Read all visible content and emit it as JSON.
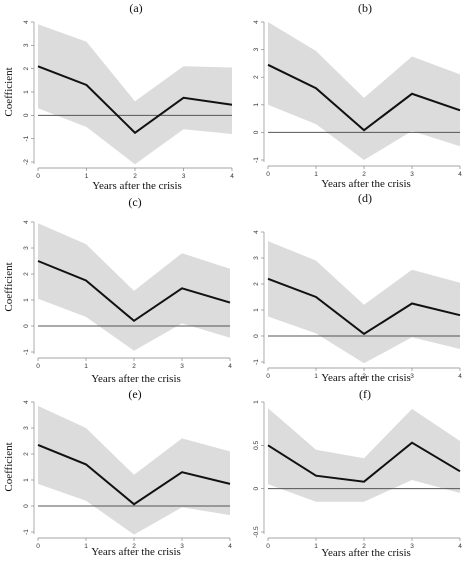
{
  "chart_data": [
    {
      "type": "line",
      "title": "(a)",
      "xlabel": "Years after the crisis",
      "ylabel": "Coefficient",
      "x": [
        0,
        1,
        2,
        3,
        4
      ],
      "xlim": [
        0,
        4
      ],
      "ylim": [
        -2,
        4
      ],
      "yticks": [
        -2,
        -1,
        0,
        1,
        2,
        3,
        4
      ],
      "xticks": [
        0,
        1,
        2,
        3,
        4
      ],
      "series": [
        {
          "values": [
            2.1,
            1.3,
            -0.75,
            0.75,
            0.45
          ]
        }
      ],
      "ci_lower": [
        0.3,
        -0.5,
        -2.1,
        -0.6,
        -0.8
      ],
      "ci_upper": [
        3.9,
        3.15,
        0.6,
        2.1,
        2.05
      ],
      "reference_line": 0,
      "colors": {
        "line": "#111111",
        "band": "#dcdcdc",
        "reference": "#555555"
      }
    },
    {
      "type": "line",
      "title": "(b)",
      "xlabel": "Years after the crisis",
      "ylabel": "",
      "x": [
        0,
        1,
        2,
        3,
        4
      ],
      "xlim": [
        0,
        4
      ],
      "ylim": [
        -1,
        4
      ],
      "yticks": [
        -1,
        0,
        1,
        2,
        3,
        4
      ],
      "xticks": [
        0,
        1,
        2,
        3,
        4
      ],
      "series": [
        {
          "values": [
            2.45,
            1.6,
            0.08,
            1.4,
            0.8
          ]
        }
      ],
      "ci_lower": [
        1.0,
        0.3,
        -1.0,
        0.05,
        -0.5
      ],
      "ci_upper": [
        4.0,
        2.95,
        1.25,
        2.75,
        2.1
      ],
      "reference_line": 0,
      "colors": {
        "line": "#111111",
        "band": "#dcdcdc",
        "reference": "#555555"
      }
    },
    {
      "type": "line",
      "title": "(c)",
      "xlabel": "Years after the crisis",
      "ylabel": "Coefficient",
      "x": [
        0,
        1,
        2,
        3,
        4
      ],
      "xlim": [
        0,
        4
      ],
      "ylim": [
        -1,
        4
      ],
      "yticks": [
        -1,
        0,
        1,
        2,
        3,
        4
      ],
      "xticks": [
        0,
        1,
        2,
        3,
        4
      ],
      "series": [
        {
          "values": [
            2.5,
            1.75,
            0.2,
            1.45,
            0.9
          ]
        }
      ],
      "ci_lower": [
        1.05,
        0.35,
        -0.95,
        0.1,
        -0.45
      ],
      "ci_upper": [
        3.95,
        3.15,
        1.35,
        2.8,
        2.2
      ],
      "reference_line": 0,
      "colors": {
        "line": "#111111",
        "band": "#dcdcdc",
        "reference": "#555555"
      }
    },
    {
      "type": "line",
      "title": "(d)",
      "xlabel": "Years after the crisis",
      "ylabel": "",
      "x": [
        0,
        1,
        2,
        3,
        4
      ],
      "xlim": [
        0,
        4
      ],
      "ylim": [
        -1,
        4
      ],
      "yticks": [
        -1,
        0,
        1,
        2,
        3,
        4
      ],
      "xticks": [
        0,
        1,
        2,
        3,
        4
      ],
      "series": [
        {
          "values": [
            2.2,
            1.5,
            0.08,
            1.25,
            0.8
          ]
        }
      ],
      "ci_lower": [
        0.75,
        0.1,
        -1.05,
        -0.05,
        -0.5
      ],
      "ci_upper": [
        3.65,
        2.9,
        1.2,
        2.55,
        2.05
      ],
      "reference_line": 0,
      "colors": {
        "line": "#111111",
        "band": "#dcdcdc",
        "reference": "#555555"
      }
    },
    {
      "type": "line",
      "title": "(e)",
      "xlabel": "Years after the crisis",
      "ylabel": "Coefficient",
      "x": [
        0,
        1,
        2,
        3,
        4
      ],
      "xlim": [
        0,
        4
      ],
      "ylim": [
        -1,
        4
      ],
      "yticks": [
        -1,
        0,
        1,
        2,
        3,
        4
      ],
      "xticks": [
        0,
        1,
        2,
        3,
        4
      ],
      "series": [
        {
          "values": [
            2.35,
            1.6,
            0.07,
            1.3,
            0.85
          ]
        }
      ],
      "ci_lower": [
        0.85,
        0.2,
        -1.1,
        -0.05,
        -0.35
      ],
      "ci_upper": [
        3.85,
        3.0,
        1.2,
        2.6,
        2.1
      ],
      "reference_line": 0,
      "colors": {
        "line": "#111111",
        "band": "#dcdcdc",
        "reference": "#555555"
      }
    },
    {
      "type": "line",
      "title": "(f)",
      "xlabel": "Years after the crisis",
      "ylabel": "",
      "x": [
        0,
        1,
        2,
        3,
        4
      ],
      "xlim": [
        0,
        4
      ],
      "ylim": [
        -0.5,
        1
      ],
      "yticks": [
        -0.5,
        0,
        0.5,
        1
      ],
      "xticks": [
        0,
        1,
        2,
        3,
        4
      ],
      "series": [
        {
          "values": [
            0.5,
            0.15,
            0.08,
            0.53,
            0.2
          ]
        }
      ],
      "ci_lower": [
        0.05,
        -0.15,
        -0.15,
        0.1,
        -0.05
      ],
      "ci_upper": [
        0.93,
        0.45,
        0.35,
        0.92,
        0.55
      ],
      "reference_line": 0,
      "colors": {
        "line": "#111111",
        "band": "#dcdcdc",
        "reference": "#555555"
      }
    }
  ]
}
